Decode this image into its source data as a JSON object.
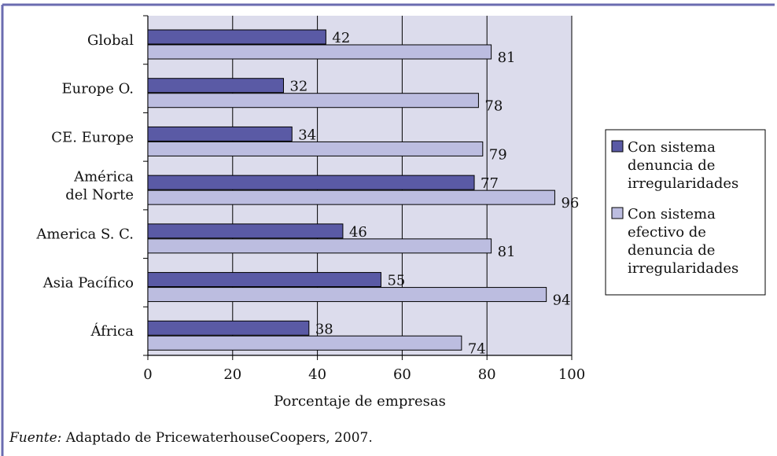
{
  "chart_data": {
    "type": "bar",
    "orientation": "horizontal",
    "categories": [
      "Global",
      "Europe O.",
      "CE. Europe",
      "América del Norte",
      "America S. C.",
      "Asia Pacífico",
      "África"
    ],
    "category_lines": [
      [
        "Global"
      ],
      [
        "Europe O."
      ],
      [
        "CE. Europe"
      ],
      [
        "América",
        "del Norte"
      ],
      [
        "America S. C."
      ],
      [
        "Asia Pacífico"
      ],
      [
        "África"
      ]
    ],
    "series": [
      {
        "name": "Con sistema denuncia de irregularidades",
        "legend_lines": [
          "Con sistema",
          "denuncia de",
          "irregularidades"
        ],
        "values": [
          42,
          32,
          34,
          77,
          46,
          55,
          38
        ],
        "color": "#5a5aa5"
      },
      {
        "name": "Con sistema efectivo de denuncia de irregularidades",
        "legend_lines": [
          "Con sistema",
          "efectivo de",
          "denuncia de",
          "irregularidades"
        ],
        "values": [
          81,
          78,
          79,
          96,
          81,
          94,
          74
        ],
        "color": "#bcbde0"
      }
    ],
    "xlim": [
      0,
      100
    ],
    "x_ticks": [
      0,
      20,
      40,
      60,
      80,
      100
    ],
    "xlabel": "Porcentaje de empresas",
    "plot_background": "#dcdcec",
    "gridlines": true,
    "legend_position": "right"
  },
  "source": {
    "lead": "Fuente:",
    "text": " Adaptado de PricewaterhouseCoopers, 2007."
  },
  "colors": {
    "frame": "#6b6cb0",
    "grid": "#000000"
  }
}
